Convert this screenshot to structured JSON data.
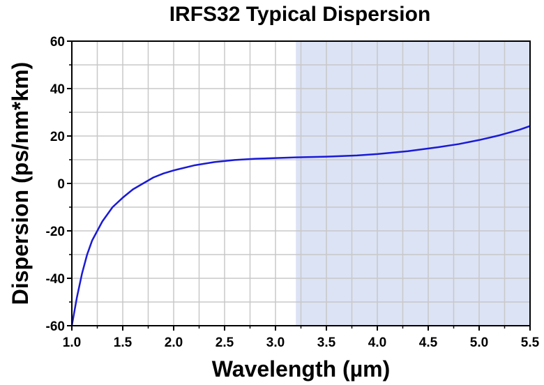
{
  "chart_data": {
    "type": "line",
    "title": "IRFS32 Typical Dispersion",
    "xlabel": "Wavelength (µm)",
    "ylabel": "Dispersion (ps/nm*km)",
    "xlim": [
      1.0,
      5.5
    ],
    "ylim": [
      -60,
      60
    ],
    "x_ticks": [
      "1.0",
      "1.5",
      "2.0",
      "2.5",
      "3.0",
      "3.5",
      "4.0",
      "4.5",
      "5.0",
      "5.5"
    ],
    "y_ticks": [
      "-60",
      "-40",
      "-20",
      "0",
      "20",
      "40",
      "60"
    ],
    "grid": true,
    "shaded_region": {
      "x_start": 3.2,
      "x_end": 5.5,
      "color": "#dce3f5"
    },
    "series": [
      {
        "color": "#1a1ad6",
        "x": [
          1.0,
          1.05,
          1.1,
          1.15,
          1.2,
          1.3,
          1.4,
          1.5,
          1.6,
          1.7,
          1.8,
          1.9,
          2.0,
          2.2,
          2.4,
          2.6,
          2.8,
          3.0,
          3.2,
          3.5,
          3.8,
          4.0,
          4.3,
          4.6,
          4.8,
          5.0,
          5.2,
          5.4,
          5.5
        ],
        "y": [
          -60,
          -48,
          -38,
          -30,
          -24,
          -16,
          -10,
          -6,
          -2.5,
          0,
          2.5,
          4.2,
          5.5,
          7.6,
          9.0,
          9.9,
          10.4,
          10.7,
          11.0,
          11.3,
          11.8,
          12.4,
          13.6,
          15.3,
          16.6,
          18.3,
          20.3,
          22.7,
          24.2
        ]
      }
    ]
  }
}
